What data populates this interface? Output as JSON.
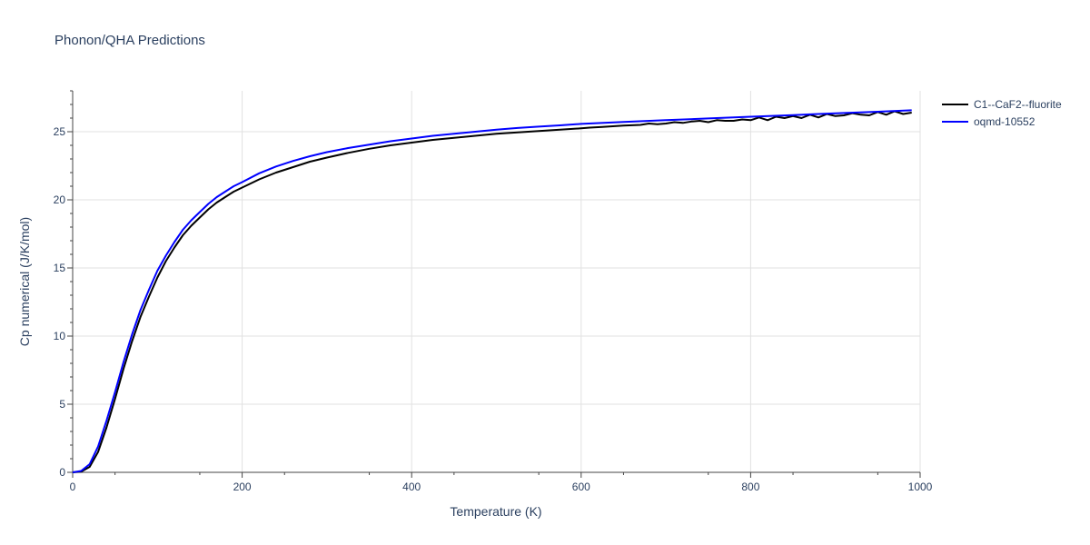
{
  "title": "Phonon/QHA Predictions",
  "chart_data": {
    "type": "line",
    "title": "Phonon/QHA Predictions",
    "xlabel": "Temperature (K)",
    "ylabel": "Cp numerical (J/K/mol)",
    "xlim": [
      0,
      1000
    ],
    "ylim": [
      0,
      28
    ],
    "xticks": [
      0,
      200,
      400,
      600,
      800,
      1000
    ],
    "yticks": [
      0,
      5,
      10,
      15,
      20,
      25
    ],
    "grid": true,
    "legend_position": "top-right",
    "series": [
      {
        "name": "C1--CaF2--fluorite",
        "color": "#000000",
        "x": [
          0,
          10,
          20,
          30,
          40,
          50,
          60,
          70,
          80,
          90,
          100,
          110,
          120,
          130,
          140,
          150,
          160,
          170,
          180,
          190,
          200,
          220,
          240,
          260,
          280,
          300,
          325,
          350,
          375,
          400,
          425,
          450,
          475,
          500,
          525,
          550,
          575,
          600,
          610,
          625,
          650,
          670,
          680,
          690,
          700,
          710,
          720,
          730,
          740,
          750,
          760,
          770,
          780,
          790,
          800,
          810,
          820,
          830,
          840,
          850,
          860,
          870,
          880,
          890,
          900,
          910,
          920,
          930,
          940,
          950,
          960,
          970,
          980,
          990
        ],
        "y": [
          0,
          0.05,
          0.4,
          1.5,
          3.3,
          5.4,
          7.6,
          9.6,
          11.4,
          12.9,
          14.3,
          15.5,
          16.5,
          17.4,
          18.1,
          18.7,
          19.3,
          19.8,
          20.2,
          20.6,
          20.9,
          21.5,
          22.0,
          22.4,
          22.8,
          23.1,
          23.45,
          23.75,
          24.0,
          24.2,
          24.4,
          24.55,
          24.7,
          24.85,
          24.95,
          25.05,
          25.15,
          25.25,
          25.3,
          25.35,
          25.45,
          25.5,
          25.6,
          25.55,
          25.6,
          25.7,
          25.65,
          25.75,
          25.8,
          25.7,
          25.85,
          25.8,
          25.8,
          25.9,
          25.85,
          26.05,
          25.85,
          26.1,
          26.0,
          26.15,
          26.0,
          26.25,
          26.05,
          26.3,
          26.15,
          26.2,
          26.35,
          26.25,
          26.2,
          26.45,
          26.25,
          26.5,
          26.3,
          26.4
        ]
      },
      {
        "name": "oqmd-10552",
        "color": "#0000ff",
        "x": [
          0,
          10,
          20,
          30,
          40,
          50,
          60,
          70,
          80,
          90,
          100,
          110,
          120,
          130,
          140,
          150,
          160,
          170,
          180,
          190,
          200,
          220,
          240,
          260,
          280,
          300,
          325,
          350,
          375,
          400,
          425,
          450,
          475,
          500,
          525,
          550,
          575,
          600,
          650,
          700,
          750,
          800,
          850,
          900,
          950,
          990
        ],
        "y": [
          0,
          0.1,
          0.6,
          1.9,
          3.8,
          5.9,
          8.1,
          10.1,
          11.9,
          13.4,
          14.8,
          15.9,
          16.9,
          17.8,
          18.5,
          19.1,
          19.7,
          20.2,
          20.6,
          21.0,
          21.3,
          21.95,
          22.45,
          22.85,
          23.2,
          23.5,
          23.8,
          24.05,
          24.3,
          24.5,
          24.7,
          24.85,
          25.0,
          25.15,
          25.27,
          25.37,
          25.47,
          25.57,
          25.72,
          25.85,
          25.97,
          26.1,
          26.22,
          26.35,
          26.47,
          26.57
        ]
      }
    ]
  }
}
